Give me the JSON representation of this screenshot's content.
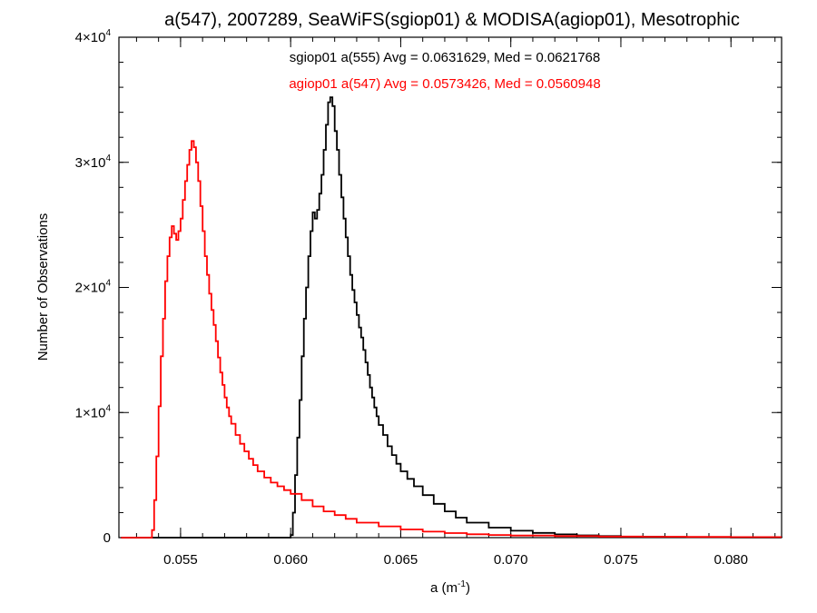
{
  "chart_data": {
    "type": "line",
    "step": true,
    "title": "a(547), 2007289, SeaWiFS(sgiop01) & MODISA(agiop01), Mesotrophic",
    "xlabel": {
      "base": "a (m",
      "sup": "-1",
      "tail": ")"
    },
    "ylabel": "Number of Observations",
    "xlim": [
      0.0522,
      0.0823
    ],
    "ylim": [
      0,
      40000
    ],
    "x_ticks": [
      {
        "value": 0.055,
        "label": "0.055"
      },
      {
        "value": 0.06,
        "label": "0.060"
      },
      {
        "value": 0.065,
        "label": "0.065"
      },
      {
        "value": 0.07,
        "label": "0.070"
      },
      {
        "value": 0.075,
        "label": "0.075"
      },
      {
        "value": 0.08,
        "label": "0.080"
      }
    ],
    "y_ticks": [
      {
        "value": 0,
        "base": "0",
        "exp": ""
      },
      {
        "value": 10000,
        "base": "1×10",
        "exp": "4"
      },
      {
        "value": 20000,
        "base": "2×10",
        "exp": "4"
      },
      {
        "value": 30000,
        "base": "3×10",
        "exp": "4"
      },
      {
        "value": 40000,
        "base": "4×10",
        "exp": "4"
      }
    ],
    "annotations": [
      {
        "text": "sgiop01 a(555) Avg = 0.0631629, Med = 0.0621768",
        "color": "#000000"
      },
      {
        "text": "agiop01 a(547) Avg = 0.0573426, Med = 0.0560948",
        "color": "#ff0000"
      }
    ],
    "series": [
      {
        "color": "#000000",
        "points": [
          [
            0.0523,
            0
          ],
          [
            0.0598,
            0
          ],
          [
            0.06,
            200
          ],
          [
            0.0601,
            2000
          ],
          [
            0.0602,
            5000
          ],
          [
            0.0603,
            8000
          ],
          [
            0.0604,
            11000
          ],
          [
            0.0605,
            14500
          ],
          [
            0.0606,
            17500
          ],
          [
            0.0607,
            20000
          ],
          [
            0.0608,
            22500
          ],
          [
            0.0609,
            24500
          ],
          [
            0.061,
            26000
          ],
          [
            0.0611,
            25500
          ],
          [
            0.0612,
            26200
          ],
          [
            0.0613,
            27500
          ],
          [
            0.0614,
            29000
          ],
          [
            0.0615,
            31000
          ],
          [
            0.0616,
            33000
          ],
          [
            0.0617,
            34800
          ],
          [
            0.0618,
            35200
          ],
          [
            0.0619,
            34500
          ],
          [
            0.062,
            32500
          ],
          [
            0.0621,
            31000
          ],
          [
            0.0622,
            29000
          ],
          [
            0.0623,
            27200
          ],
          [
            0.0624,
            25500
          ],
          [
            0.0625,
            24000
          ],
          [
            0.0626,
            22500
          ],
          [
            0.0627,
            21000
          ],
          [
            0.0628,
            19800
          ],
          [
            0.0629,
            18800
          ],
          [
            0.063,
            17800
          ],
          [
            0.0631,
            16800
          ],
          [
            0.0632,
            16000
          ],
          [
            0.0633,
            15000
          ],
          [
            0.0634,
            14000
          ],
          [
            0.0635,
            13000
          ],
          [
            0.0636,
            12000
          ],
          [
            0.0637,
            11200
          ],
          [
            0.0638,
            10400
          ],
          [
            0.0639,
            9700
          ],
          [
            0.064,
            9000
          ],
          [
            0.0642,
            8200
          ],
          [
            0.0644,
            7300
          ],
          [
            0.0646,
            6600
          ],
          [
            0.0648,
            5900
          ],
          [
            0.065,
            5300
          ],
          [
            0.0653,
            4700
          ],
          [
            0.0656,
            4100
          ],
          [
            0.066,
            3400
          ],
          [
            0.0665,
            2700
          ],
          [
            0.067,
            2100
          ],
          [
            0.0675,
            1600
          ],
          [
            0.068,
            1200
          ],
          [
            0.069,
            800
          ],
          [
            0.07,
            550
          ],
          [
            0.071,
            380
          ],
          [
            0.072,
            260
          ],
          [
            0.073,
            180
          ],
          [
            0.074,
            120
          ],
          [
            0.075,
            80
          ],
          [
            0.077,
            40
          ],
          [
            0.08,
            15
          ],
          [
            0.0823,
            5
          ]
        ]
      },
      {
        "color": "#ff0000",
        "points": [
          [
            0.0523,
            0
          ],
          [
            0.0536,
            0
          ],
          [
            0.0537,
            600
          ],
          [
            0.0538,
            3000
          ],
          [
            0.0539,
            6500
          ],
          [
            0.054,
            10500
          ],
          [
            0.0541,
            14500
          ],
          [
            0.0542,
            17500
          ],
          [
            0.0543,
            20500
          ],
          [
            0.0544,
            22500
          ],
          [
            0.0545,
            24000
          ],
          [
            0.0546,
            24900
          ],
          [
            0.0547,
            24300
          ],
          [
            0.0548,
            23800
          ],
          [
            0.0549,
            24500
          ],
          [
            0.055,
            25500
          ],
          [
            0.0551,
            27000
          ],
          [
            0.0552,
            28500
          ],
          [
            0.0553,
            29800
          ],
          [
            0.0554,
            31000
          ],
          [
            0.0555,
            31700
          ],
          [
            0.0556,
            31200
          ],
          [
            0.0557,
            30000
          ],
          [
            0.0558,
            28500
          ],
          [
            0.0559,
            26500
          ],
          [
            0.056,
            24500
          ],
          [
            0.0561,
            22500
          ],
          [
            0.0562,
            21000
          ],
          [
            0.0563,
            19500
          ],
          [
            0.0564,
            18200
          ],
          [
            0.0565,
            17000
          ],
          [
            0.0566,
            15700
          ],
          [
            0.0567,
            14400
          ],
          [
            0.0568,
            13200
          ],
          [
            0.0569,
            12200
          ],
          [
            0.057,
            11200
          ],
          [
            0.0571,
            10400
          ],
          [
            0.0572,
            9700
          ],
          [
            0.0573,
            9100
          ],
          [
            0.0575,
            8200
          ],
          [
            0.0577,
            7500
          ],
          [
            0.0579,
            6900
          ],
          [
            0.0581,
            6300
          ],
          [
            0.0583,
            5800
          ],
          [
            0.0585,
            5300
          ],
          [
            0.0588,
            4800
          ],
          [
            0.0591,
            4400
          ],
          [
            0.0594,
            4100
          ],
          [
            0.0597,
            3800
          ],
          [
            0.06,
            3500
          ],
          [
            0.0605,
            3000
          ],
          [
            0.061,
            2500
          ],
          [
            0.0615,
            2100
          ],
          [
            0.062,
            1800
          ],
          [
            0.0625,
            1500
          ],
          [
            0.063,
            1200
          ],
          [
            0.064,
            900
          ],
          [
            0.065,
            650
          ],
          [
            0.066,
            480
          ],
          [
            0.067,
            360
          ],
          [
            0.068,
            270
          ],
          [
            0.069,
            210
          ],
          [
            0.07,
            170
          ],
          [
            0.072,
            120
          ],
          [
            0.074,
            90
          ],
          [
            0.076,
            70
          ],
          [
            0.078,
            55
          ],
          [
            0.08,
            45
          ],
          [
            0.0823,
            40
          ]
        ]
      }
    ]
  }
}
